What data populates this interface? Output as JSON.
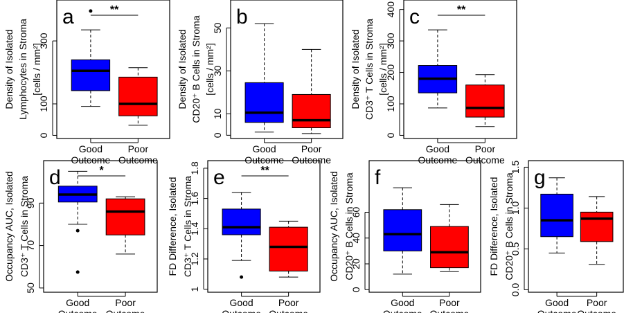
{
  "chart_data": [
    {
      "type": "box",
      "panel_label": "a",
      "ylabel_lines": [
        "Density of Isolated",
        "Lymphocytes in Stroma",
        "[cells / mm²]"
      ],
      "categories": [
        "Good\nOutcome",
        "Poor\nOutcome"
      ],
      "yticks": [
        0,
        100,
        300
      ],
      "ylim": [
        -10,
        430
      ],
      "boxes": [
        {
          "color": "#0000ff",
          "whisker_low": 92,
          "q1": 142,
          "median": 205,
          "q3": 240,
          "whisker_high": 335,
          "outliers": [
            395
          ]
        },
        {
          "color": "#ff0000",
          "whisker_low": 32,
          "q1": 62,
          "median": 100,
          "q3": 185,
          "whisker_high": 215,
          "outliers": []
        }
      ],
      "significance": "**"
    },
    {
      "type": "box",
      "panel_label": "b",
      "ylabel_lines": [
        "Density of Isolated",
        "CD20⁺ B Cells in Stroma",
        "[cells / mm²]"
      ],
      "categories": [
        "Good\nOutcome",
        "Poor\nOutcome"
      ],
      "yticks": [
        0,
        10,
        30,
        50
      ],
      "ylim": [
        -1.5,
        63
      ],
      "boxes": [
        {
          "color": "#0000ff",
          "whisker_low": 1.5,
          "q1": 6,
          "median": 10.5,
          "q3": 24.5,
          "whisker_high": 52,
          "outliers": []
        },
        {
          "color": "#ff0000",
          "whisker_low": 0.8,
          "q1": 3.5,
          "median": 7,
          "q3": 19,
          "whisker_high": 40,
          "outliers": []
        }
      ],
      "significance": ""
    },
    {
      "type": "box",
      "panel_label": "c",
      "ylabel_lines": [
        "Density of Isolated",
        "CD3⁺ T Cells in Stroma",
        "[cells / mm²]"
      ],
      "categories": [
        "Good\nOutcome",
        "Poor\nOutcome"
      ],
      "yticks": [
        0,
        100,
        200,
        300,
        400
      ],
      "ylim": [
        -10,
        430
      ],
      "boxes": [
        {
          "color": "#0000ff",
          "whisker_low": 87,
          "q1": 135,
          "median": 180,
          "q3": 222,
          "whisker_high": 335,
          "outliers": []
        },
        {
          "color": "#ff0000",
          "whisker_low": 28,
          "q1": 58,
          "median": 87,
          "q3": 160,
          "whisker_high": 193,
          "outliers": []
        }
      ],
      "significance": "**"
    },
    {
      "type": "box",
      "panel_label": "d",
      "ylabel_lines": [
        "Occupancy AUC, Isolated",
        "CD3⁺ T Cells in Stroma"
      ],
      "categories": [
        "Good\nOutcome",
        "Poor\nOutcome"
      ],
      "yticks": [
        50,
        70,
        90
      ],
      "ylim": [
        48,
        110
      ],
      "boxes": [
        {
          "color": "#0000ff",
          "whisker_low": 80,
          "q1": 90.5,
          "median": 94,
          "q3": 98,
          "whisker_high": 105,
          "outliers": [
            77,
            57.5
          ]
        },
        {
          "color": "#ff0000",
          "whisker_low": 66,
          "q1": 75,
          "median": 86,
          "q3": 92,
          "whisker_high": 93,
          "outliers": []
        }
      ],
      "significance": "*"
    },
    {
      "type": "box",
      "panel_label": "e",
      "ylabel_lines": [
        "FD Difference, Isolated",
        "CD3⁺ T Cells in Stroma"
      ],
      "categories": [
        "Good\nOutcome",
        "Poor\nOutcome"
      ],
      "yticks": [
        1.0,
        1.2,
        1.4,
        1.6,
        1.8
      ],
      "ylim": [
        0.98,
        1.85
      ],
      "boxes": [
        {
          "color": "#0000ff",
          "whisker_low": 1.19,
          "q1": 1.36,
          "median": 1.41,
          "q3": 1.53,
          "whisker_high": 1.64,
          "outliers": [
            1.08
          ]
        },
        {
          "color": "#ff0000",
          "whisker_low": 1.08,
          "q1": 1.12,
          "median": 1.28,
          "q3": 1.41,
          "whisker_high": 1.45,
          "outliers": []
        }
      ],
      "significance": "**"
    },
    {
      "type": "box",
      "panel_label": "f",
      "ylabel_lines": [
        "Occupancy AUC, Isolated",
        "CD20⁺ B Cells in Stroma"
      ],
      "categories": [
        "Good\nOutcome",
        "Poor\nOutcome"
      ],
      "yticks": [
        0,
        20,
        40,
        60
      ],
      "ylim": [
        -2,
        100
      ],
      "boxes": [
        {
          "color": "#0000ff",
          "whisker_low": 12,
          "q1": 30,
          "median": 43,
          "q3": 62,
          "whisker_high": 79,
          "outliers": []
        },
        {
          "color": "#ff0000",
          "whisker_low": 14,
          "q1": 17,
          "median": 29,
          "q3": 49,
          "whisker_high": 66,
          "outliers": []
        }
      ],
      "significance": ""
    },
    {
      "type": "box",
      "panel_label": "g",
      "ylabel_lines": [
        "FD Difference, Isolated",
        "CD20⁺ B Cells in Stroma"
      ],
      "categories": [
        "Good\nOutcome",
        "Poor\nOutcome"
      ],
      "yticks": [
        "0.0",
        "0.5",
        "1.0",
        "1.5"
      ],
      "ylim": [
        -0.03,
        1.58
      ],
      "boxes": [
        {
          "color": "#0000ff",
          "whisker_low": 0.45,
          "q1": 0.65,
          "median": 0.85,
          "q3": 1.17,
          "whisker_high": 1.37,
          "outliers": []
        },
        {
          "color": "#ff0000",
          "whisker_low": 0.31,
          "q1": 0.59,
          "median": 0.87,
          "q3": 0.95,
          "whisker_high": 1.14,
          "outliers": []
        }
      ],
      "significance": ""
    }
  ]
}
